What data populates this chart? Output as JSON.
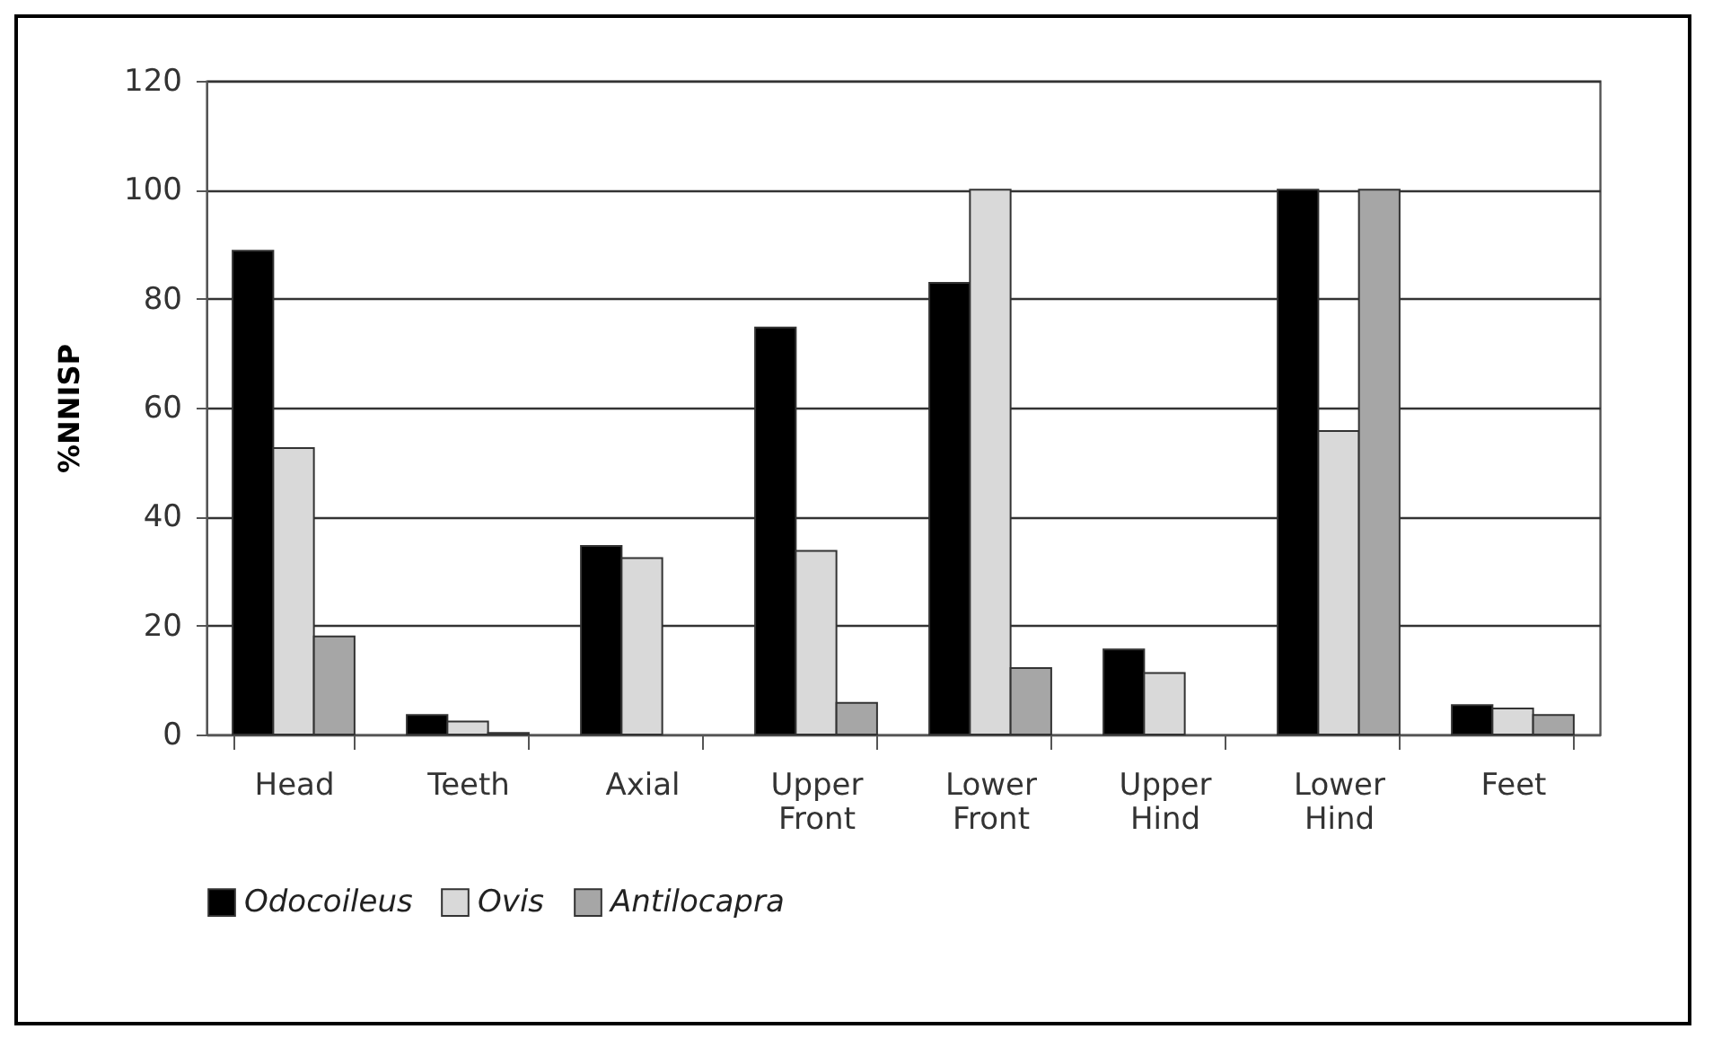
{
  "chart_data": {
    "type": "bar",
    "ylabel": "%NNISP",
    "categories": [
      "Head",
      "Teeth",
      "Axial",
      "Upper Front",
      "Lower Front",
      "Upper Hind",
      "Lower Hind",
      "Feet"
    ],
    "series": [
      {
        "name": "Odocoileus",
        "color": "#000000",
        "values": [
          88.8,
          3.6,
          34.6,
          74.7,
          82.9,
          15.6,
          100,
          5.4
        ]
      },
      {
        "name": "Ovis",
        "color": "#d9d9d9",
        "values": [
          52.6,
          2.4,
          32.4,
          33.7,
          100,
          11.3,
          55.7,
          4.8
        ]
      },
      {
        "name": "Antilocapra",
        "color": "#a6a6a6",
        "values": [
          18.0,
          0.3,
          null,
          5.8,
          12.2,
          null,
          100,
          3.6
        ]
      }
    ],
    "ylim": [
      0,
      120
    ],
    "yticks": [
      0,
      20,
      40,
      60,
      80,
      100,
      120
    ],
    "grid": "y",
    "legend": "bottom"
  }
}
